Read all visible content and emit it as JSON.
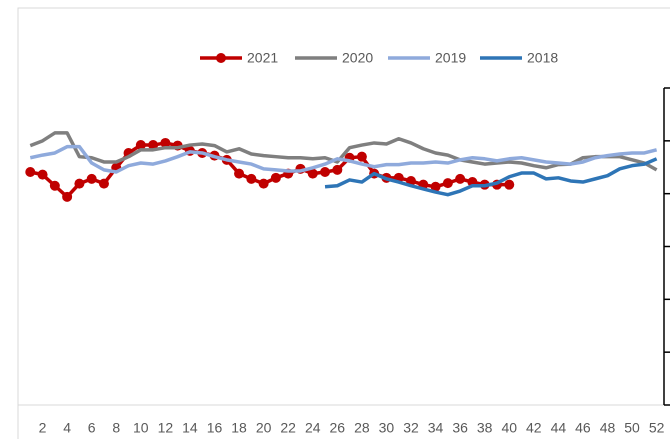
{
  "chart_data": {
    "type": "line",
    "x": [
      1,
      2,
      3,
      4,
      5,
      6,
      7,
      8,
      9,
      10,
      11,
      12,
      13,
      14,
      15,
      16,
      17,
      18,
      19,
      20,
      21,
      22,
      23,
      24,
      25,
      26,
      27,
      28,
      29,
      30,
      31,
      32,
      33,
      34,
      35,
      36,
      37,
      38,
      39,
      40,
      41,
      42,
      43,
      44,
      45,
      46,
      47,
      48,
      49,
      50,
      51,
      52
    ],
    "xlim": [
      0,
      52.6
    ],
    "xticks": [
      2,
      4,
      6,
      8,
      10,
      12,
      14,
      16,
      18,
      20,
      22,
      24,
      26,
      28,
      30,
      32,
      34,
      36,
      38,
      40,
      42,
      44,
      46,
      48,
      50,
      52
    ],
    "ylim": [
      0,
      6
    ],
    "yticks": [
      0,
      1,
      2,
      3,
      4,
      5,
      6
    ],
    "y_axis_side": "right",
    "series": [
      {
        "name": "2021",
        "color": "#c00000",
        "markers": true,
        "values": [
          4.41,
          4.36,
          4.15,
          3.94,
          4.19,
          4.28,
          4.19,
          4.49,
          4.77,
          4.92,
          4.92,
          4.96,
          4.91,
          4.81,
          4.77,
          4.72,
          4.64,
          4.38,
          4.28,
          4.19,
          4.3,
          4.38,
          4.47,
          4.38,
          4.41,
          4.45,
          4.68,
          4.7,
          4.38,
          4.3,
          4.3,
          4.24,
          4.17,
          4.13,
          4.2,
          4.28,
          4.22,
          4.17,
          4.17,
          4.17,
          null,
          null,
          null,
          null,
          null,
          null,
          null,
          null,
          null,
          null,
          null,
          null
        ]
      },
      {
        "name": "2020",
        "color": "#7f7f7f",
        "markers": false,
        "values": [
          4.91,
          5.0,
          5.15,
          5.15,
          4.7,
          4.68,
          4.6,
          4.6,
          4.7,
          4.83,
          4.83,
          4.87,
          4.87,
          4.92,
          4.94,
          4.91,
          4.79,
          4.85,
          4.75,
          4.72,
          4.7,
          4.68,
          4.68,
          4.66,
          4.68,
          4.6,
          4.87,
          4.92,
          4.96,
          4.94,
          5.04,
          4.96,
          4.85,
          4.77,
          4.73,
          4.64,
          4.6,
          4.56,
          4.58,
          4.6,
          4.58,
          4.53,
          4.49,
          4.55,
          4.56,
          4.68,
          4.7,
          4.7,
          4.7,
          4.64,
          4.58,
          4.45
        ]
      },
      {
        "name": "2019",
        "color": "#8faadc",
        "markers": false,
        "values": [
          4.68,
          4.73,
          4.77,
          4.89,
          4.89,
          4.58,
          4.45,
          4.41,
          4.53,
          4.58,
          4.56,
          4.62,
          4.7,
          4.79,
          4.77,
          4.7,
          4.64,
          4.6,
          4.56,
          4.47,
          4.45,
          4.43,
          4.43,
          4.49,
          4.56,
          4.66,
          4.62,
          4.56,
          4.51,
          4.55,
          4.55,
          4.58,
          4.58,
          4.6,
          4.58,
          4.64,
          4.68,
          4.66,
          4.62,
          4.66,
          4.68,
          4.64,
          4.6,
          4.58,
          4.56,
          4.6,
          4.68,
          4.72,
          4.75,
          4.77,
          4.77,
          4.83
        ]
      },
      {
        "name": "2018",
        "color": "#2e75b6",
        "markers": false,
        "values": [
          null,
          null,
          null,
          null,
          null,
          null,
          null,
          null,
          null,
          null,
          null,
          null,
          null,
          null,
          null,
          null,
          null,
          null,
          null,
          null,
          null,
          null,
          null,
          null,
          4.13,
          4.15,
          4.26,
          4.22,
          4.38,
          4.28,
          4.22,
          4.15,
          4.09,
          4.03,
          3.98,
          4.05,
          4.15,
          4.15,
          4.2,
          4.32,
          4.39,
          4.39,
          4.28,
          4.3,
          4.24,
          4.22,
          4.28,
          4.34,
          4.47,
          4.53,
          4.56,
          4.66
        ]
      }
    ]
  }
}
